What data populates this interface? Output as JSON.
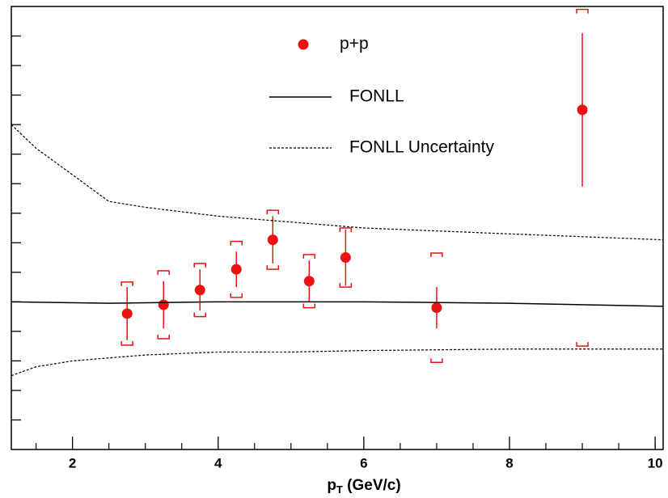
{
  "chart_data": {
    "type": "scatter",
    "xlabel": "p",
    "xlabel_sub": "T",
    "xlabel_rest": " (GeV/c)",
    "xlim": [
      1.16,
      10.11
    ],
    "xticks": [
      2,
      4,
      6,
      8,
      10
    ],
    "xminor": [
      1.5,
      2.5,
      3,
      3.5,
      4.5,
      5,
      5.5,
      6.5,
      7,
      7.5,
      8.5,
      9,
      9.5,
      10
    ],
    "ylim": [
      0.5,
      2.0
    ],
    "yticks": [
      0.6,
      0.7,
      0.8,
      0.9,
      1.0,
      1.1,
      1.2,
      1.3,
      1.4,
      1.5,
      1.6,
      1.7,
      1.8,
      1.9
    ],
    "series": [
      {
        "name": "p+p",
        "color": "#ee1111",
        "x": [
          2.75,
          3.25,
          3.75,
          4.25,
          4.75,
          5.25,
          5.75,
          7.0,
          9.0
        ],
        "values": [
          0.96,
          0.99,
          1.04,
          1.11,
          1.21,
          1.07,
          1.15,
          0.98,
          1.65
        ],
        "err": [
          0.09,
          0.08,
          0.07,
          0.06,
          0.08,
          0.07,
          0.095,
          0.07,
          0.26
        ],
        "syst_minus": [
          0.107,
          0.115,
          0.09,
          0.095,
          0.1,
          0.09,
          0.1,
          0.185,
          0.8
        ],
        "syst_plus": [
          0.107,
          0.115,
          0.09,
          0.095,
          0.1,
          0.09,
          0.1,
          0.185,
          0.34
        ]
      },
      {
        "name": "FONLL",
        "color": "#000000",
        "x": [
          1.16,
          2.5,
          4,
          6,
          8,
          10.11
        ],
        "values": [
          1.0,
          0.995,
          1.0,
          1.0,
          0.995,
          0.985
        ]
      },
      {
        "name": "FONLL Uncertainty",
        "color": "#000000",
        "x": [
          1.16,
          1.5,
          2,
          2.5,
          3,
          4,
          5,
          6,
          8,
          10.11
        ],
        "upper": [
          1.6,
          1.52,
          1.43,
          1.34,
          1.32,
          1.29,
          1.27,
          1.25,
          1.23,
          1.21
        ],
        "lower": [
          0.75,
          0.78,
          0.8,
          0.81,
          0.82,
          0.83,
          0.83,
          0.835,
          0.84,
          0.84
        ]
      }
    ]
  }
}
